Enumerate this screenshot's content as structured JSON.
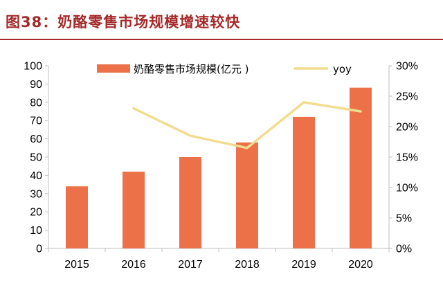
{
  "figure": {
    "title": "图38：奶酪零售市场规模增速较快"
  },
  "colors": {
    "title": "#a52a2a",
    "bar": "#ec7149",
    "line": "#f1dc8f",
    "axis": "#bfbfbf"
  },
  "chart_data": {
    "type": "bar",
    "title": "",
    "categories": [
      "2015",
      "2016",
      "2017",
      "2018",
      "2019",
      "2020"
    ],
    "series": [
      {
        "name": "奶酪零售市场规模(亿元 )",
        "type": "bar",
        "axis": "left",
        "values": [
          34,
          42,
          50,
          58,
          72,
          88
        ]
      },
      {
        "name": "yoy",
        "type": "line",
        "axis": "right",
        "values": [
          null,
          23.0,
          18.5,
          16.5,
          24.0,
          22.5
        ]
      }
    ],
    "y_left": {
      "min": 0,
      "max": 100,
      "step": 10,
      "ticks": [
        "0",
        "10",
        "20",
        "30",
        "40",
        "50",
        "60",
        "70",
        "80",
        "90",
        "100"
      ]
    },
    "y_right": {
      "min": 0,
      "max": 30,
      "step": 5,
      "ticks": [
        "0%",
        "5%",
        "10%",
        "15%",
        "20%",
        "25%",
        "30%"
      ]
    },
    "legend": {
      "position": "top",
      "items": [
        "奶酪零售市场规模(亿元 )",
        "yoy"
      ]
    },
    "grid": false
  }
}
